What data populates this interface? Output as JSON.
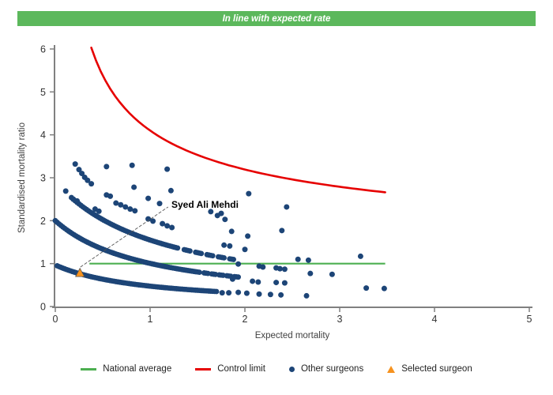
{
  "banner": {
    "title": "In line with expected rate",
    "bg_color": "#5cb85c",
    "text_color": "#ffffff"
  },
  "chart_data": {
    "type": "scatter",
    "title": "In line with expected rate",
    "xlabel": "Expected mortality",
    "ylabel": "Standardised mortality ratio",
    "xlim": [
      0,
      5
    ],
    "ylim": [
      0,
      6
    ],
    "x_ticks": [
      0,
      1,
      2,
      3,
      4,
      5
    ],
    "y_ticks": [
      0,
      1,
      2,
      3,
      4,
      5,
      6
    ],
    "grid": false,
    "axis_color": "#808080",
    "point_color": "#1d4577",
    "national_average": {
      "y": 1,
      "x_start": 0.36,
      "x_end": 3.48,
      "color": "#4caf50"
    },
    "control_limit": {
      "offset": 1,
      "k": 3.1,
      "x_start": 0.38,
      "x_end": 3.48,
      "color": "#e60000"
    },
    "bands": [
      {
        "a": 0.93,
        "b": 0.96,
        "step": 0.02,
        "segments": [
          [
            0.02,
            1.7
          ]
        ]
      },
      {
        "a": 2.02,
        "b": 1.01,
        "step": 0.02,
        "segments": [
          [
            0.0,
            1.52
          ],
          [
            1.57,
            1.61
          ],
          [
            1.65,
            1.69
          ],
          [
            1.73,
            1.77
          ],
          [
            1.81,
            1.85
          ],
          [
            1.89,
            1.93
          ]
        ]
      },
      {
        "a": 3.3,
        "b": 1.13,
        "step": 0.02,
        "segments": [
          [
            0.17,
            1.3
          ],
          [
            1.36,
            1.42
          ],
          [
            1.48,
            1.54
          ],
          [
            1.6,
            1.66
          ],
          [
            1.72,
            1.78
          ],
          [
            1.84,
            1.89
          ]
        ]
      }
    ],
    "scatter_points": [
      [
        0.21,
        3.32
      ],
      [
        0.54,
        3.26
      ],
      [
        0.81,
        3.29
      ],
      [
        1.18,
        3.2
      ],
      [
        0.25,
        3.19
      ],
      [
        0.28,
        3.1
      ],
      [
        0.31,
        3.01
      ],
      [
        0.34,
        2.94
      ],
      [
        0.38,
        2.86
      ],
      [
        0.11,
        2.69
      ],
      [
        0.83,
        2.78
      ],
      [
        1.22,
        2.7
      ],
      [
        0.54,
        2.6
      ],
      [
        0.58,
        2.57
      ],
      [
        0.19,
        2.5
      ],
      [
        0.23,
        2.46
      ],
      [
        0.42,
        2.27
      ],
      [
        0.46,
        2.22
      ],
      [
        0.64,
        2.41
      ],
      [
        0.69,
        2.37
      ],
      [
        0.74,
        2.32
      ],
      [
        0.79,
        2.27
      ],
      [
        0.84,
        2.23
      ],
      [
        0.98,
        2.52
      ],
      [
        1.1,
        2.4
      ],
      [
        0.98,
        2.04
      ],
      [
        1.03,
        1.99
      ],
      [
        1.13,
        1.93
      ],
      [
        1.18,
        1.88
      ],
      [
        1.23,
        1.84
      ],
      [
        1.64,
        2.21
      ],
      [
        1.71,
        2.12
      ],
      [
        1.79,
        2.03
      ],
      [
        1.75,
        2.17
      ],
      [
        2.04,
        2.63
      ],
      [
        2.44,
        2.32
      ],
      [
        2.39,
        1.77
      ],
      [
        1.86,
        1.75
      ],
      [
        2.03,
        1.64
      ],
      [
        1.78,
        1.43
      ],
      [
        1.84,
        1.41
      ],
      [
        2.0,
        1.33
      ],
      [
        2.56,
        1.1
      ],
      [
        2.67,
        1.08
      ],
      [
        3.22,
        1.17
      ],
      [
        1.93,
        0.99
      ],
      [
        2.15,
        0.94
      ],
      [
        2.19,
        0.92
      ],
      [
        2.33,
        0.9
      ],
      [
        2.37,
        0.88
      ],
      [
        2.42,
        0.87
      ],
      [
        2.69,
        0.77
      ],
      [
        2.92,
        0.75
      ],
      [
        1.87,
        0.64
      ],
      [
        2.08,
        0.59
      ],
      [
        2.14,
        0.57
      ],
      [
        2.33,
        0.56
      ],
      [
        2.42,
        0.55
      ],
      [
        3.28,
        0.43
      ],
      [
        3.47,
        0.42
      ],
      [
        1.76,
        0.32
      ],
      [
        1.83,
        0.32
      ],
      [
        1.93,
        0.33
      ],
      [
        2.02,
        0.31
      ],
      [
        2.15,
        0.29
      ],
      [
        2.27,
        0.28
      ],
      [
        2.38,
        0.27
      ],
      [
        2.65,
        0.25
      ]
    ],
    "selected_surgeon": {
      "x": 0.26,
      "y": 0.78,
      "color": "#f6921e"
    },
    "annotation": {
      "text": "Syed Ali Mehdi",
      "text_x": 1.225,
      "text_y": 2.3,
      "line": [
        [
          0.265,
          0.92
        ],
        [
          1.19,
          2.32
        ]
      ]
    }
  },
  "legend": {
    "items": [
      {
        "label": "National average",
        "marker": "line",
        "color": "#4caf50"
      },
      {
        "label": "Control limit",
        "marker": "line",
        "color": "#e60000"
      },
      {
        "label": "Other surgeons",
        "marker": "dot",
        "color": "#1d4577"
      },
      {
        "label": "Selected surgeon",
        "marker": "triangle",
        "color": "#f6921e"
      }
    ]
  }
}
